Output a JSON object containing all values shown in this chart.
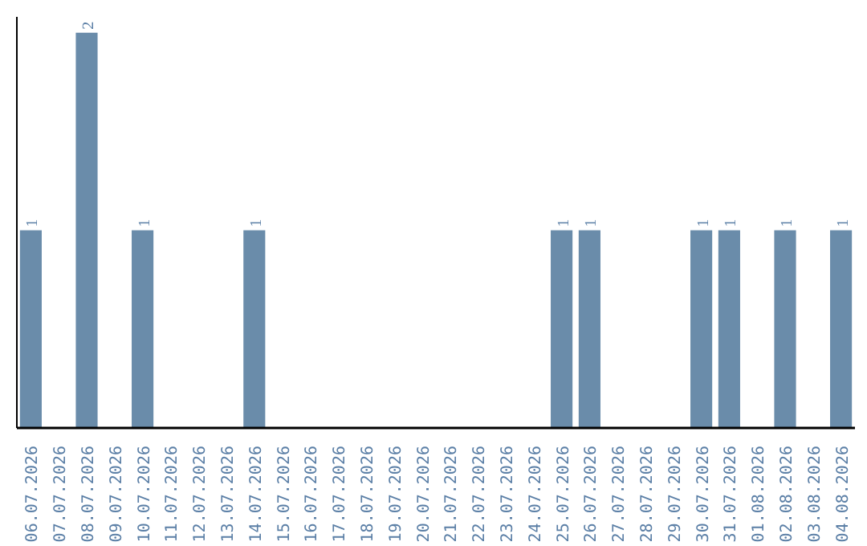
{
  "chart_data": {
    "type": "bar",
    "categories": [
      "06.07.2026",
      "07.07.2026",
      "08.07.2026",
      "09.07.2026",
      "10.07.2026",
      "11.07.2026",
      "12.07.2026",
      "13.07.2026",
      "14.07.2026",
      "15.07.2026",
      "16.07.2026",
      "17.07.2026",
      "18.07.2026",
      "19.07.2026",
      "20.07.2026",
      "21.07.2026",
      "22.07.2026",
      "23.07.2026",
      "24.07.2026",
      "25.07.2026",
      "26.07.2026",
      "27.07.2026",
      "28.07.2026",
      "29.07.2026",
      "30.07.2026",
      "31.07.2026",
      "01.08.2026",
      "02.08.2026",
      "03.08.2026",
      "04.08.2026"
    ],
    "values": [
      1,
      0,
      2,
      0,
      1,
      0,
      0,
      0,
      1,
      0,
      0,
      0,
      0,
      0,
      0,
      0,
      0,
      0,
      0,
      1,
      1,
      0,
      0,
      0,
      1,
      1,
      0,
      1,
      0,
      1
    ],
    "value_labels": [
      "1",
      null,
      "2",
      null,
      "1",
      null,
      null,
      null,
      "1",
      null,
      null,
      null,
      null,
      null,
      null,
      null,
      null,
      null,
      null,
      "1",
      "1",
      null,
      null,
      null,
      "1",
      "1",
      null,
      "1",
      null,
      "1"
    ],
    "color": "#6a8caa",
    "ylim": [
      0,
      2.08
    ],
    "grid": false,
    "tick_labels": "x"
  }
}
